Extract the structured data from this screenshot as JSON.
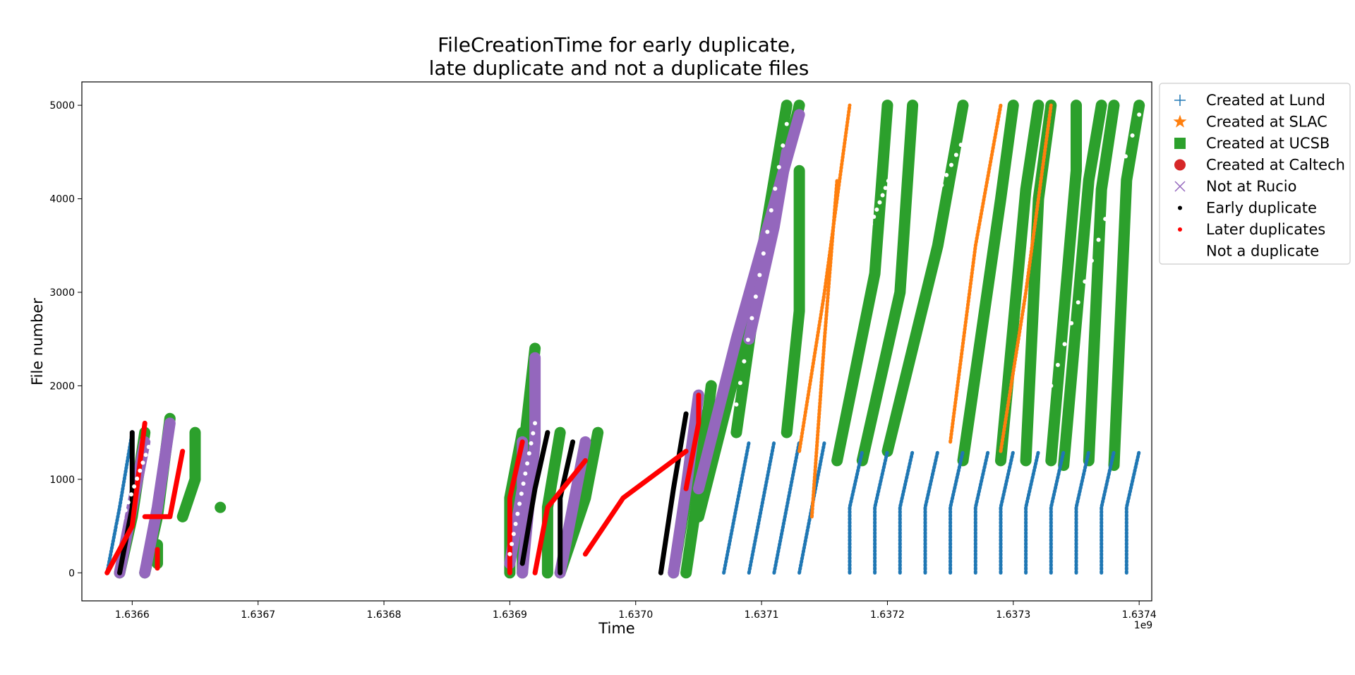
{
  "chart_data": {
    "type": "scatter",
    "title_line1": "FileCreationTime for early duplicate,",
    "title_line2": "late duplicate and not a duplicate files",
    "xlabel": "Time",
    "ylabel": "File number",
    "x_offset_label": "1e9",
    "x_unit_multiplier": 1000000000,
    "xlim": [
      1.63656,
      1.63741
    ],
    "ylim": [
      -300,
      5250
    ],
    "xticks": [
      1.6366,
      1.6367,
      1.6368,
      1.6369,
      1.637,
      1.6371,
      1.6372,
      1.6373,
      1.6374
    ],
    "xtick_labels": [
      "1.6366",
      "1.6367",
      "1.6368",
      "1.6369",
      "1.6370",
      "1.6371",
      "1.6372",
      "1.6373",
      "1.6374"
    ],
    "yticks": [
      0,
      1000,
      2000,
      3000,
      4000,
      5000
    ],
    "ytick_labels": [
      "0",
      "1000",
      "2000",
      "3000",
      "4000",
      "5000"
    ],
    "grid": false,
    "legend_position": "outside right, top",
    "legend": [
      {
        "label": "Created at Lund",
        "marker": "plus",
        "color": "#1f77b4"
      },
      {
        "label": "Created at SLAC",
        "marker": "star",
        "color": "#ff7f0e"
      },
      {
        "label": "Created at UCSB",
        "marker": "square",
        "color": "#2ca02c"
      },
      {
        "label": "Created at Caltech",
        "marker": "circle",
        "color": "#d62728"
      },
      {
        "label": "Not at Rucio",
        "marker": "x",
        "color": "#9467bd"
      },
      {
        "label": "Early duplicate",
        "marker": "dot",
        "color": "#000000"
      },
      {
        "label": "Later duplicates",
        "marker": "dot",
        "color": "#ff0000"
      },
      {
        "label": "Not a duplicate",
        "marker": "dot",
        "color": "#ffffff"
      }
    ],
    "series": [
      {
        "name": "Created at UCSB",
        "color": "#2ca02c",
        "style": "band",
        "tracks": [
          [
            [
              1.63659,
              0
            ],
            [
              1.6366,
              600
            ],
            [
              1.63661,
              1500
            ]
          ],
          [
            [
              1.63661,
              0
            ],
            [
              1.63662,
              600
            ],
            [
              1.63663,
              1650
            ]
          ],
          [
            [
              1.63664,
              600
            ],
            [
              1.63665,
              1000
            ],
            [
              1.63665,
              1500
            ]
          ],
          [
            [
              1.63662,
              300
            ],
            [
              1.63662,
              100
            ]
          ],
          [
            [
              1.63667,
              700
            ],
            [
              1.63667,
              700
            ]
          ],
          [
            [
              1.6369,
              0
            ],
            [
              1.6369,
              800
            ],
            [
              1.63691,
              1500
            ]
          ],
          [
            [
              1.63691,
              0
            ],
            [
              1.63691,
              1200
            ],
            [
              1.63692,
              2400
            ]
          ],
          [
            [
              1.63693,
              0
            ],
            [
              1.63693,
              700
            ],
            [
              1.63694,
              1500
            ]
          ],
          [
            [
              1.63694,
              0
            ],
            [
              1.63696,
              800
            ],
            [
              1.63697,
              1500
            ]
          ],
          [
            [
              1.63703,
              0
            ],
            [
              1.63704,
              800
            ],
            [
              1.63705,
              1700
            ]
          ],
          [
            [
              1.63704,
              0
            ],
            [
              1.63705,
              900
            ],
            [
              1.63706,
              2000
            ]
          ],
          [
            [
              1.63705,
              600
            ],
            [
              1.63708,
              2200
            ],
            [
              1.63713,
              5000
            ]
          ],
          [
            [
              1.63708,
              1500
            ],
            [
              1.6371,
              3400
            ],
            [
              1.63712,
              5000
            ]
          ],
          [
            [
              1.63712,
              1500
            ],
            [
              1.63713,
              2800
            ],
            [
              1.63713,
              4300
            ]
          ],
          [
            [
              1.63716,
              1200
            ],
            [
              1.63719,
              3200
            ],
            [
              1.6372,
              5000
            ]
          ],
          [
            [
              1.63718,
              1200
            ],
            [
              1.63721,
              3000
            ],
            [
              1.63722,
              5000
            ]
          ],
          [
            [
              1.6372,
              1300
            ],
            [
              1.63724,
              3500
            ],
            [
              1.63726,
              5000
            ]
          ],
          [
            [
              1.63726,
              1200
            ],
            [
              1.63729,
              4000
            ],
            [
              1.6373,
              5000
            ]
          ],
          [
            [
              1.63729,
              1200
            ],
            [
              1.63731,
              4100
            ],
            [
              1.63732,
              5000
            ]
          ],
          [
            [
              1.63731,
              1200
            ],
            [
              1.63732,
              4000
            ],
            [
              1.63733,
              5000
            ]
          ],
          [
            [
              1.63733,
              1200
            ],
            [
              1.63735,
              4300
            ],
            [
              1.63735,
              5000
            ]
          ],
          [
            [
              1.63734,
              1150
            ],
            [
              1.63736,
              4200
            ],
            [
              1.63737,
              5000
            ]
          ],
          [
            [
              1.63736,
              1200
            ],
            [
              1.63737,
              4100
            ],
            [
              1.63738,
              5000
            ]
          ],
          [
            [
              1.63738,
              1150
            ],
            [
              1.63739,
              4200
            ],
            [
              1.6374,
              5000
            ]
          ]
        ]
      },
      {
        "name": "Not at Rucio",
        "color": "#9467bd",
        "style": "band",
        "tracks": [
          [
            [
              1.63659,
              0
            ],
            [
              1.6366,
              700
            ],
            [
              1.63661,
              1400
            ]
          ],
          [
            [
              1.63661,
              0
            ],
            [
              1.63662,
              700
            ],
            [
              1.63663,
              1600
            ]
          ],
          [
            [
              1.6369,
              100
            ],
            [
              1.63691,
              900
            ],
            [
              1.63691,
              1400
            ]
          ],
          [
            [
              1.63691,
              0
            ],
            [
              1.63692,
              1400
            ],
            [
              1.63692,
              2300
            ]
          ],
          [
            [
              1.63694,
              0
            ],
            [
              1.63695,
              700
            ],
            [
              1.63696,
              1400
            ]
          ],
          [
            [
              1.63703,
              0
            ],
            [
              1.63704,
              900
            ],
            [
              1.63705,
              1900
            ]
          ],
          [
            [
              1.63705,
              900
            ],
            [
              1.63708,
              2500
            ],
            [
              1.63713,
              4900
            ]
          ],
          [
            [
              1.63709,
              2500
            ],
            [
              1.63711,
              3700
            ],
            [
              1.63712,
              4500
            ]
          ]
        ]
      },
      {
        "name": "Created at Lund",
        "color": "#1f77b4",
        "style": "thin",
        "tracks": [
          [
            [
              1.63658,
              0
            ],
            [
              1.63659,
              700
            ],
            [
              1.6366,
              1500
            ]
          ],
          [
            [
              1.63707,
              0
            ],
            [
              1.63708,
              700
            ],
            [
              1.63709,
              1400
            ]
          ],
          [
            [
              1.63709,
              0
            ],
            [
              1.6371,
              700
            ],
            [
              1.63711,
              1400
            ]
          ],
          [
            [
              1.63711,
              0
            ],
            [
              1.63712,
              700
            ],
            [
              1.63713,
              1400
            ]
          ],
          [
            [
              1.63713,
              0
            ],
            [
              1.63714,
              700
            ],
            [
              1.63715,
              1400
            ]
          ],
          [
            [
              1.63717,
              0
            ],
            [
              1.63717,
              700
            ],
            [
              1.63718,
              1300
            ]
          ],
          [
            [
              1.63719,
              0
            ],
            [
              1.63719,
              700
            ],
            [
              1.6372,
              1300
            ]
          ],
          [
            [
              1.63721,
              0
            ],
            [
              1.63721,
              700
            ],
            [
              1.63722,
              1300
            ]
          ],
          [
            [
              1.63723,
              0
            ],
            [
              1.63723,
              700
            ],
            [
              1.63724,
              1300
            ]
          ],
          [
            [
              1.63725,
              0
            ],
            [
              1.63725,
              700
            ],
            [
              1.63726,
              1300
            ]
          ],
          [
            [
              1.63727,
              0
            ],
            [
              1.63727,
              700
            ],
            [
              1.63728,
              1300
            ]
          ],
          [
            [
              1.63729,
              0
            ],
            [
              1.63729,
              700
            ],
            [
              1.6373,
              1300
            ]
          ],
          [
            [
              1.63731,
              0
            ],
            [
              1.63731,
              700
            ],
            [
              1.63732,
              1300
            ]
          ],
          [
            [
              1.63733,
              0
            ],
            [
              1.63733,
              700
            ],
            [
              1.63734,
              1300
            ]
          ],
          [
            [
              1.63735,
              0
            ],
            [
              1.63735,
              700
            ],
            [
              1.63736,
              1300
            ]
          ],
          [
            [
              1.63737,
              0
            ],
            [
              1.63737,
              700
            ],
            [
              1.63738,
              1300
            ]
          ],
          [
            [
              1.63739,
              0
            ],
            [
              1.63739,
              700
            ],
            [
              1.6374,
              1300
            ]
          ]
        ]
      },
      {
        "name": "Created at SLAC",
        "color": "#ff7f0e",
        "style": "thin",
        "tracks": [
          [
            [
              1.63713,
              1300
            ],
            [
              1.63715,
              3000
            ],
            [
              1.63717,
              5000
            ]
          ],
          [
            [
              1.63714,
              600
            ],
            [
              1.63715,
              2500
            ],
            [
              1.63716,
              4200
            ]
          ],
          [
            [
              1.63725,
              1400
            ],
            [
              1.63727,
              3500
            ],
            [
              1.63729,
              5000
            ]
          ],
          [
            [
              1.63729,
              1300
            ],
            [
              1.63731,
              3000
            ],
            [
              1.63733,
              5000
            ]
          ]
        ]
      },
      {
        "name": "Early duplicate",
        "color": "#000000",
        "style": "core",
        "tracks": [
          [
            [
              1.63659,
              0
            ],
            [
              1.6366,
              700
            ],
            [
              1.6366,
              1500
            ]
          ],
          [
            [
              1.63691,
              100
            ],
            [
              1.63692,
              900
            ],
            [
              1.63693,
              1500
            ]
          ],
          [
            [
              1.63694,
              0
            ],
            [
              1.63694,
              800
            ],
            [
              1.63695,
              1400
            ]
          ],
          [
            [
              1.63702,
              0
            ],
            [
              1.63703,
              900
            ],
            [
              1.63704,
              1700
            ]
          ]
        ]
      },
      {
        "name": "Later duplicates",
        "color": "#ff0000",
        "style": "core",
        "tracks": [
          [
            [
              1.63658,
              0
            ],
            [
              1.6366,
              500
            ],
            [
              1.63661,
              1600
            ]
          ],
          [
            [
              1.63661,
              600
            ],
            [
              1.63663,
              600
            ],
            [
              1.63664,
              1300
            ]
          ],
          [
            [
              1.63662,
              250
            ],
            [
              1.63662,
              50
            ]
          ],
          [
            [
              1.6369,
              0
            ],
            [
              1.6369,
              800
            ],
            [
              1.63691,
              1400
            ]
          ],
          [
            [
              1.63692,
              0
            ],
            [
              1.63693,
              700
            ],
            [
              1.63696,
              1200
            ]
          ],
          [
            [
              1.63696,
              200
            ],
            [
              1.63699,
              800
            ],
            [
              1.63704,
              1300
            ]
          ],
          [
            [
              1.63704,
              900
            ],
            [
              1.63705,
              1600
            ],
            [
              1.63705,
              1900
            ]
          ]
        ]
      },
      {
        "name": "Not a duplicate",
        "color": "#ffffff",
        "style": "dots",
        "tracks": [
          [
            [
              1.63659,
              500
            ],
            [
              1.63662,
              1600
            ]
          ],
          [
            [
              1.6369,
              200
            ],
            [
              1.63692,
              1600
            ]
          ],
          [
            [
              1.63708,
              1800
            ],
            [
              1.63712,
              4800
            ]
          ],
          [
            [
              1.63718,
              3500
            ],
            [
              1.63721,
              4500
            ]
          ],
          [
            [
              1.63722,
              3500
            ],
            [
              1.63727,
              4900
            ]
          ],
          [
            [
              1.63733,
              2000
            ],
            [
              1.6374,
              4900
            ]
          ]
        ]
      }
    ]
  }
}
